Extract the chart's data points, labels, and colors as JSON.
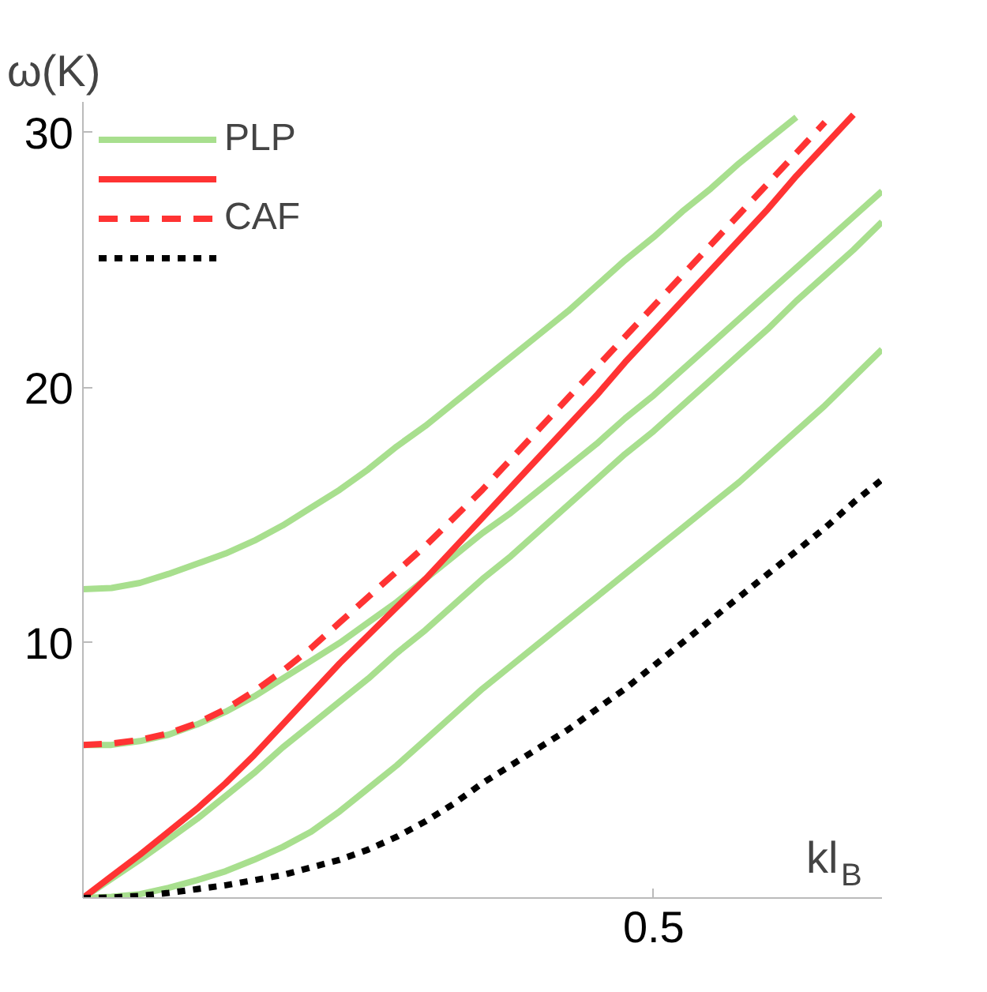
{
  "chart_data": {
    "type": "line",
    "xlabel": "kl$_{B}$",
    "ylabel": "ω(K)",
    "categories": [
      null,
      null,
      null,
      null,
      null,
      null,
      null,
      null,
      null,
      null,
      null,
      null,
      null,
      null,
      null,
      null,
      null,
      null,
      null,
      null,
      "0.5",
      null,
      null,
      null,
      null,
      null,
      null,
      null,
      null
    ],
    "ylim": [
      0,
      31.2
    ],
    "yticks": [
      10,
      20,
      30
    ],
    "grid": false,
    "legend": "top left",
    "series": [
      {
        "name": "PLP",
        "color": "#a8df8e",
        "line_style": "solid",
        "values": [
          12.1,
          12.15,
          12.35,
          12.7,
          13.1,
          13.5,
          14.0,
          14.6,
          15.3,
          16.0,
          16.8,
          17.7,
          18.5,
          19.4,
          20.3,
          21.2,
          22.1,
          23.0,
          24.0,
          25.0,
          25.9,
          26.9,
          27.8,
          28.8,
          29.7,
          30.6,
          null,
          null,
          null
        ]
      },
      {
        "color": "#a8df8e",
        "line_style": "solid",
        "values": [
          6.0,
          6.0,
          6.15,
          6.4,
          6.8,
          7.3,
          7.9,
          8.6,
          9.3,
          10.0,
          10.8,
          11.6,
          12.5,
          13.4,
          14.3,
          15.1,
          16.0,
          16.9,
          17.8,
          18.8,
          19.7,
          20.7,
          21.7,
          22.7,
          23.7,
          24.7,
          25.7,
          26.7,
          27.7
        ]
      },
      {
        "color": "#a8df8e",
        "line_style": "solid",
        "values": [
          0,
          0.75,
          1.5,
          2.3,
          3.1,
          4.0,
          4.9,
          5.9,
          6.8,
          7.7,
          8.6,
          9.6,
          10.5,
          11.5,
          12.5,
          13.4,
          14.4,
          15.4,
          16.4,
          17.4,
          18.3,
          19.3,
          20.3,
          21.3,
          22.3,
          23.4,
          24.4,
          25.4,
          26.5
        ]
      },
      {
        "color": "#a8df8e",
        "line_style": "solid",
        "values": [
          0,
          0.05,
          0.15,
          0.4,
          0.7,
          1.05,
          1.5,
          2.0,
          2.6,
          3.4,
          4.3,
          5.2,
          6.2,
          7.2,
          8.2,
          9.1,
          10.0,
          10.9,
          11.8,
          12.7,
          13.6,
          14.5,
          15.4,
          16.3,
          17.3,
          18.3,
          19.3,
          20.4,
          21.5
        ]
      },
      {
        "color": "#ff3333",
        "line_style": "solid",
        "values": [
          0,
          0.85,
          1.7,
          2.6,
          3.5,
          4.5,
          5.6,
          6.8,
          8.0,
          9.2,
          10.3,
          11.4,
          12.5,
          13.7,
          14.9,
          16.1,
          17.3,
          18.5,
          19.7,
          21.0,
          22.2,
          23.4,
          24.6,
          25.8,
          27.0,
          28.3,
          29.5,
          30.7,
          null
        ]
      },
      {
        "name": "CAF",
        "color": "#ff3333",
        "line_style": "dashed",
        "values": [
          6.0,
          6.05,
          6.2,
          6.45,
          6.85,
          7.4,
          8.1,
          8.9,
          9.8,
          10.8,
          11.8,
          12.8,
          13.8,
          14.9,
          16.0,
          17.2,
          18.4,
          19.6,
          20.8,
          22.0,
          23.2,
          24.4,
          25.6,
          26.8,
          28.0,
          29.2,
          30.4,
          null,
          null
        ]
      },
      {
        "color": "#000000",
        "line_style": "dotted",
        "values": [
          0,
          0.02,
          0.08,
          0.2,
          0.35,
          0.5,
          0.7,
          0.9,
          1.2,
          1.5,
          1.9,
          2.4,
          3.0,
          3.7,
          4.5,
          5.2,
          5.9,
          6.6,
          7.4,
          8.2,
          9.1,
          10.0,
          10.9,
          11.8,
          12.7,
          13.6,
          14.5,
          15.5,
          16.4
        ]
      }
    ]
  }
}
